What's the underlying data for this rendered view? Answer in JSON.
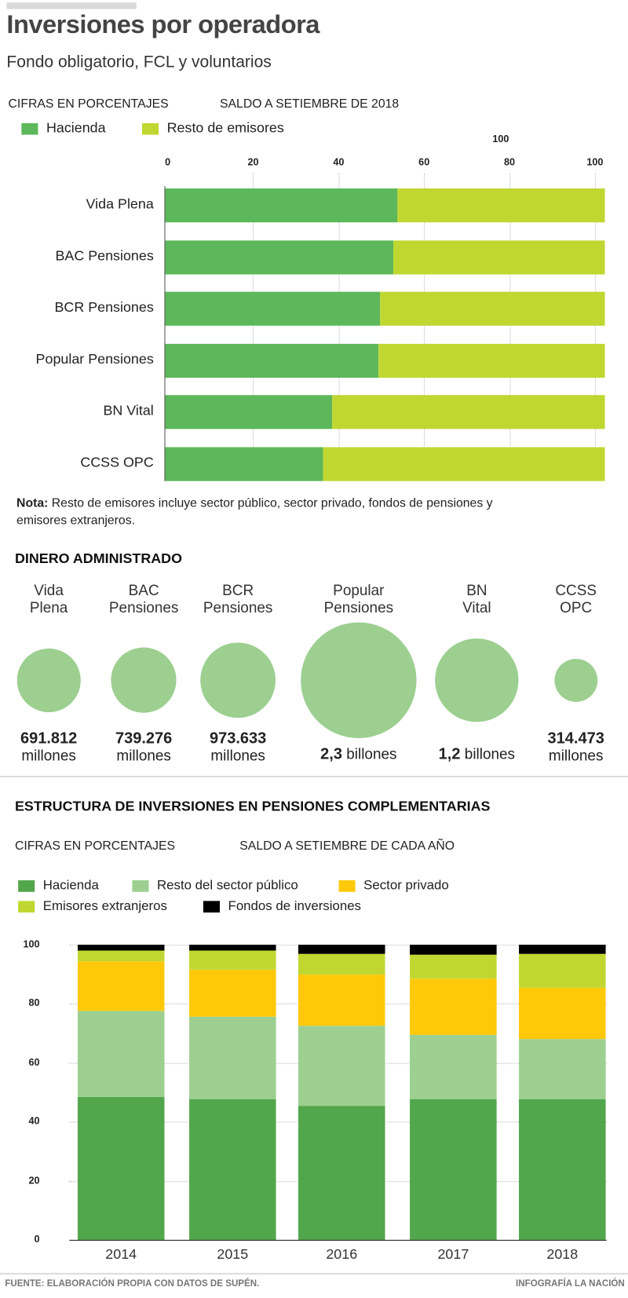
{
  "header": {
    "title": "Inversiones por operadora",
    "subtitle": "Fondo obligatorio, FCL y voluntarios"
  },
  "chart_data": [
    {
      "type": "bar",
      "orientation": "horizontal-stacked",
      "title": "Inversiones por operadora",
      "units_label": "CIFRAS EN PORCENTAJES",
      "date_label": "SALDO A SETIEMBRE DE 2018",
      "extra_label": "100",
      "xlim": [
        0,
        100
      ],
      "xticks": [
        0,
        20,
        40,
        60,
        80,
        100
      ],
      "categories": [
        "Vida Plena",
        "BAC Pensiones",
        "BCR Pensiones",
        "Popular Pensiones",
        "BN Vital",
        "CCSS OPC"
      ],
      "series": [
        {
          "name": "Hacienda",
          "color": "#5cb85a",
          "values": [
            53,
            52,
            49,
            48.5,
            38,
            36
          ]
        },
        {
          "name": "Resto de emisores",
          "color": "#bfd730",
          "values": [
            47,
            48,
            51,
            51.5,
            62,
            64
          ]
        }
      ],
      "note_bold": "Nota:",
      "note": " Resto de emisores incluye sector público, sector privado, fondos de pensiones y emisores extranjeros."
    },
    {
      "type": "bubble",
      "title": "DINERO ADMINISTRADO",
      "color": "#9ccf90",
      "items": [
        {
          "name1": "Vida",
          "name2": "Plena",
          "value": 691812,
          "num": "691.812",
          "unit": "millones"
        },
        {
          "name1": "BAC",
          "name2": "Pensiones",
          "value": 739276,
          "num": "739.276",
          "unit": "millones"
        },
        {
          "name1": "BCR",
          "name2": "Pensiones",
          "value": 973633,
          "num": "973.633",
          "unit": "millones"
        },
        {
          "name1": "Popular",
          "name2": "Pensiones",
          "value": 2300000,
          "num": "2,3",
          "unit": "billones"
        },
        {
          "name1": "BN",
          "name2": "Vital",
          "value": 1200000,
          "num": "1,2",
          "unit": "billones"
        },
        {
          "name1": "CCSS",
          "name2": "OPC",
          "value": 314473,
          "num": "314.473",
          "unit": "millones"
        }
      ]
    },
    {
      "type": "bar",
      "orientation": "vertical-stacked",
      "title": "ESTRUCTURA DE INVERSIONES EN PENSIONES COMPLEMENTARIAS",
      "units_label": "CIFRAS EN PORCENTAJES",
      "date_label": "SALDO A SETIEMBRE DE CADA AÑO",
      "ylim": [
        0,
        100
      ],
      "yticks": [
        0,
        20,
        40,
        60,
        80,
        100
      ],
      "categories": [
        "2014",
        "2015",
        "2016",
        "2017",
        "2018"
      ],
      "series": [
        {
          "name": "Hacienda",
          "color": "#52a64c",
          "values": [
            48.5,
            47.5,
            45.5,
            47.5,
            47.5
          ]
        },
        {
          "name": "Resto del sector público",
          "color": "#9ccf90",
          "values": [
            29,
            28,
            27,
            22,
            20.5
          ]
        },
        {
          "name": "Sector privado",
          "color": "#ffc90a",
          "values": [
            17,
            16,
            17.5,
            19,
            17.5
          ]
        },
        {
          "name": "Emisores extranjeros",
          "color": "#bfd730",
          "values": [
            3.5,
            6.5,
            7,
            8,
            11.5
          ]
        },
        {
          "name": "Fondos de inversiones",
          "color": "#000000",
          "values": [
            2,
            2,
            3,
            3.5,
            3
          ]
        }
      ]
    }
  ],
  "footer": {
    "source": "FUENTE: ELABORACIÓN PROPIA CON DATOS DE SUPÉN.",
    "credit": "INFOGRAFÍA LA NACIÓN"
  }
}
